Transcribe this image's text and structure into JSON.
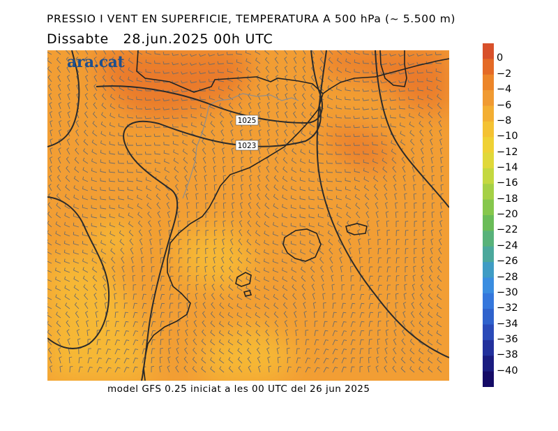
{
  "header": {
    "title": "PRESSIO I VENT EN SUPERFICIE, TEMPERATURA A 500 hPa (~ 5.500 m)",
    "subtitle": "Dissabte   28.jun.2025 00h UTC"
  },
  "footer": {
    "text": "model GFS 0.25 iniciat a les 00 UTC del 26 jun 2025"
  },
  "logo": {
    "text": "ara.cat"
  },
  "isobars": [
    {
      "label": "1025"
    },
    {
      "label": "1023"
    }
  ],
  "colorbar": {
    "labels": [
      "0",
      "−2",
      "−4",
      "−6",
      "−8",
      "−10",
      "−12",
      "−14",
      "−16",
      "−18",
      "−20",
      "−22",
      "−24",
      "−26",
      "−28",
      "−30",
      "−32",
      "−34",
      "−36",
      "−38",
      "−40"
    ],
    "colors": [
      "#d8502a",
      "#e46a26",
      "#ec8529",
      "#f09a32",
      "#f3ae32",
      "#f4c233",
      "#efd134",
      "#e0d83a",
      "#c4d840",
      "#a5d046",
      "#86c74c",
      "#6abc58",
      "#58b27a",
      "#4ba89c",
      "#3f9cc4",
      "#3a8de0",
      "#3577dc",
      "#2f62cc",
      "#2a4ab8",
      "#22309c",
      "#1a1c80",
      "#140a66"
    ]
  },
  "colors": {
    "field_base": "#f29e34",
    "field_warm": "#ea7a2a",
    "field_cool": "#f6b836",
    "coast": "#222222",
    "isobar": "#2b2b2b",
    "wind_barb": "#6b6b6b"
  }
}
